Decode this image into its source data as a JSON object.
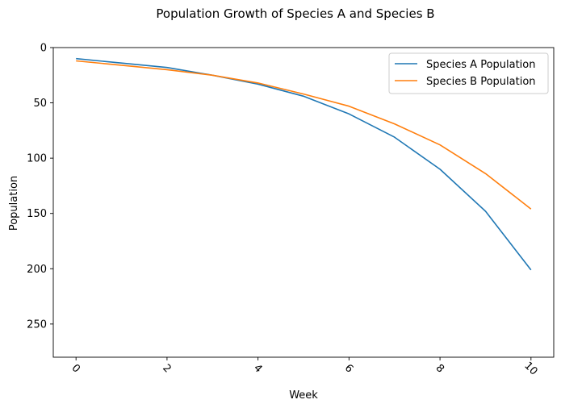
{
  "chart_data": {
    "type": "line",
    "title": "Population Growth of Species A and Species B",
    "xlabel": "Week",
    "ylabel": "Population",
    "x": [
      0,
      1,
      2,
      3,
      4,
      5,
      6,
      7,
      8,
      9,
      10
    ],
    "xlim": [
      -0.5,
      10.5
    ],
    "ylim": [
      280,
      0
    ],
    "y_inverted": true,
    "x_ticks": [
      0,
      2,
      4,
      6,
      8,
      10
    ],
    "x_tick_labels": [
      "0",
      "2",
      "4",
      "6",
      "8",
      "10"
    ],
    "y_ticks": [
      0,
      50,
      100,
      150,
      200,
      250
    ],
    "y_tick_labels": [
      "0",
      "50",
      "100",
      "150",
      "200",
      "250"
    ],
    "x_tick_rotation": "45",
    "grid": false,
    "legend_position": "top-right",
    "series": [
      {
        "name": "Species A Population",
        "color": "#1f77b4",
        "values": [
          10,
          14,
          18,
          25,
          33,
          44,
          60,
          81,
          110,
          148,
          201
        ]
      },
      {
        "name": "Species B Population",
        "color": "#ff7f0e",
        "values": [
          12,
          16,
          20,
          25,
          32,
          42,
          53,
          69,
          88,
          114,
          146
        ]
      }
    ]
  }
}
